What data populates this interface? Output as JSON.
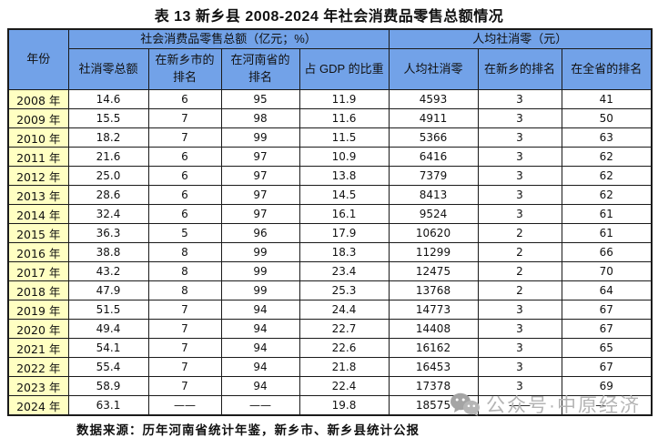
{
  "title": "表 13 新乡县 2008-2024 年社会消费品零售总额情况",
  "colors": {
    "header_bg": "#72a2e8",
    "year_bg": "#ffffc2",
    "border": "#1a1a1a",
    "watermark": "#b4b4b4"
  },
  "table": {
    "year_header": "年份",
    "sub_headers_display": [
      "社消零总额",
      "在新乡市的\n排名",
      "在河南省的\n排名",
      "占 GDP 的比重",
      "人均社消零",
      "在新乡的排名",
      "在全省的排名"
    ]
  },
  "watermark": {
    "icon": "wechat-icon",
    "text": "公众号·中原经济"
  },
  "chart_data": {
    "type": "table",
    "title": "表 13 新乡县 2008-2024 年社会消费品零售总额情况",
    "column_groups": [
      {
        "label": "年份",
        "span": 1
      },
      {
        "label": "社会消费品零售总额（亿元；%）",
        "span": 4
      },
      {
        "label": "人均社消零（元）",
        "span": 3
      }
    ],
    "columns": [
      "年份",
      "社消零总额",
      "在新乡市的排名",
      "在河南省的排名",
      "占 GDP 的比重",
      "人均社消零",
      "在新乡的排名",
      "在全省的排名"
    ],
    "rows": [
      [
        "2008 年",
        "14.6",
        "6",
        "95",
        "11.9",
        "4593",
        "3",
        "41"
      ],
      [
        "2009 年",
        "15.5",
        "7",
        "98",
        "11.6",
        "4911",
        "3",
        "50"
      ],
      [
        "2010 年",
        "18.2",
        "7",
        "99",
        "11.5",
        "5366",
        "3",
        "63"
      ],
      [
        "2011 年",
        "21.6",
        "6",
        "97",
        "10.9",
        "6416",
        "3",
        "62"
      ],
      [
        "2012 年",
        "25.0",
        "6",
        "97",
        "13.8",
        "7379",
        "3",
        "62"
      ],
      [
        "2013 年",
        "28.6",
        "6",
        "97",
        "14.5",
        "8413",
        "3",
        "62"
      ],
      [
        "2014 年",
        "32.4",
        "6",
        "97",
        "16.1",
        "9524",
        "3",
        "61"
      ],
      [
        "2015 年",
        "36.3",
        "5",
        "96",
        "17.9",
        "10620",
        "2",
        "61"
      ],
      [
        "2016 年",
        "38.8",
        "8",
        "99",
        "18.3",
        "11299",
        "2",
        "66"
      ],
      [
        "2017 年",
        "43.2",
        "8",
        "99",
        "23.4",
        "12475",
        "2",
        "70"
      ],
      [
        "2018 年",
        "47.9",
        "8",
        "99",
        "25.3",
        "13768",
        "2",
        "64"
      ],
      [
        "2019 年",
        "51.5",
        "7",
        "94",
        "24.4",
        "14773",
        "3",
        "67"
      ],
      [
        "2020 年",
        "49.4",
        "7",
        "94",
        "22.7",
        "14408",
        "3",
        "67"
      ],
      [
        "2021 年",
        "54.1",
        "7",
        "94",
        "22.6",
        "16162",
        "3",
        "65"
      ],
      [
        "2022 年",
        "55.4",
        "7",
        "94",
        "21.8",
        "16453",
        "3",
        "67"
      ],
      [
        "2023 年",
        "58.9",
        "7",
        "94",
        "22.4",
        "17378",
        "3",
        "69"
      ],
      [
        "2024 年",
        "63.1",
        "——",
        "——",
        "19.8",
        "18575",
        "——",
        "——"
      ]
    ],
    "source_note": "数据来源：历年河南省统计年鉴，新乡市、新乡县统计公报"
  }
}
